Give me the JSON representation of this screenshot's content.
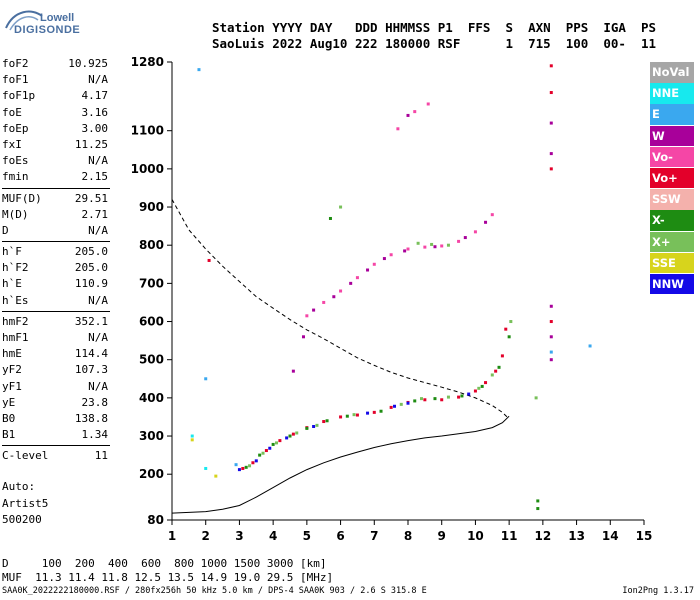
{
  "logo": {
    "line1": "Lowell",
    "line2": "DIGISONDE"
  },
  "header": {
    "line1": "Station YYYY DAY   DDD HHMMSS P1  FFS  S  AXN  PPS  IGA  PS",
    "line2": "SaoLuis 2022 Aug10 222 180000 RSF      1  715  100  00-  11"
  },
  "params": [
    {
      "group": [
        {
          "k": "foF2",
          "v": "10.925"
        },
        {
          "k": "foF1",
          "v": "N/A"
        },
        {
          "k": "foF1p",
          "v": "4.17"
        },
        {
          "k": "foE",
          "v": "3.16"
        },
        {
          "k": "foEp",
          "v": "3.00"
        },
        {
          "k": "fxI",
          "v": "11.25"
        },
        {
          "k": "foEs",
          "v": "N/A"
        },
        {
          "k": "fmin",
          "v": "2.15"
        }
      ]
    },
    {
      "group": [
        {
          "k": "MUF(D)",
          "v": "29.51"
        },
        {
          "k": "M(D)",
          "v": "2.71"
        },
        {
          "k": "D",
          "v": "N/A"
        }
      ]
    },
    {
      "group": [
        {
          "k": "h`F",
          "v": "205.0"
        },
        {
          "k": "h`F2",
          "v": "205.0"
        },
        {
          "k": "h`E",
          "v": "110.9"
        },
        {
          "k": "h`Es",
          "v": "N/A"
        }
      ]
    },
    {
      "group": [
        {
          "k": "hmF2",
          "v": "352.1"
        },
        {
          "k": "hmF1",
          "v": "N/A"
        },
        {
          "k": "hmE",
          "v": "114.4"
        },
        {
          "k": "yF2",
          "v": "107.3"
        },
        {
          "k": "yF1",
          "v": "N/A"
        },
        {
          "k": "yE",
          "v": "23.8"
        },
        {
          "k": "B0",
          "v": "138.8"
        },
        {
          "k": "B1",
          "v": "1.34"
        }
      ]
    },
    {
      "group": [
        {
          "k": "C-level",
          "v": "11"
        }
      ]
    }
  ],
  "auto": {
    "l1": "Auto:",
    "l2": "Artist5",
    "l3": "500200"
  },
  "legend": [
    {
      "label": "NoVal",
      "color": "#a6a6a6"
    },
    {
      "label": "NNE",
      "color": "#17e9ee"
    },
    {
      "label": "E",
      "color": "#3aa8ef"
    },
    {
      "label": "W",
      "color": "#a8009a"
    },
    {
      "label": "Vo-",
      "color": "#f546a6"
    },
    {
      "label": "Vo+",
      "color": "#e3002a"
    },
    {
      "label": "SSW",
      "color": "#f4b1ac"
    },
    {
      "label": "X-",
      "color": "#1e8c12"
    },
    {
      "label": "X+",
      "color": "#78c05a"
    },
    {
      "label": "SSE",
      "color": "#d7d41c"
    },
    {
      "label": "NNW",
      "color": "#1409e7"
    }
  ],
  "bottom": {
    "d_row": "D     100  200  400  600  800 1000 1500 3000 [km]",
    "muf_row": "MUF  11.3 11.4 11.8 12.5 13.5 14.9 19.0 29.5 [MHz]"
  },
  "footer": {
    "left": "SAA0K_2022222180000.RSF / 280fx256h 50 kHz 5.0 km / DPS-4 SAA0K 903 / 2.6 S 315.8 E",
    "right": "Ion2Png 1.3.17"
  },
  "chart_data": {
    "type": "scatter",
    "xlim": [
      1,
      15
    ],
    "ylim": [
      80,
      1280
    ],
    "x_ticks": [
      1,
      2,
      3,
      4,
      5,
      6,
      7,
      8,
      9,
      10,
      11,
      12,
      13,
      14,
      15
    ],
    "y_ticks": [
      80,
      200,
      300,
      400,
      500,
      600,
      700,
      800,
      900,
      1000,
      1100,
      1280
    ],
    "grid": false,
    "series": [
      {
        "color": "#e3002a",
        "points": [
          [
            3.1,
            215
          ],
          [
            3.4,
            230
          ],
          [
            3.8,
            262
          ],
          [
            4.2,
            288
          ],
          [
            4.6,
            305
          ],
          [
            5.0,
            322
          ],
          [
            5.5,
            338
          ],
          [
            6.0,
            350
          ],
          [
            6.5,
            355
          ],
          [
            7.0,
            362
          ],
          [
            7.5,
            375
          ],
          [
            8.0,
            388
          ],
          [
            8.5,
            395
          ],
          [
            9.0,
            395
          ],
          [
            9.5,
            402
          ],
          [
            10.0,
            418
          ],
          [
            10.3,
            440
          ],
          [
            10.6,
            470
          ],
          [
            10.8,
            510
          ],
          [
            10.9,
            580
          ]
        ]
      },
      {
        "color": "#1e8c12",
        "points": [
          [
            3.2,
            218
          ],
          [
            3.6,
            250
          ],
          [
            4.0,
            278
          ],
          [
            4.5,
            300
          ],
          [
            5.0,
            320
          ],
          [
            5.6,
            340
          ],
          [
            6.2,
            352
          ],
          [
            7.2,
            365
          ],
          [
            8.2,
            392
          ],
          [
            8.8,
            398
          ],
          [
            9.6,
            405
          ],
          [
            10.2,
            430
          ],
          [
            10.7,
            480
          ],
          [
            11.0,
            560
          ]
        ]
      },
      {
        "color": "#78c05a",
        "points": [
          [
            3.3,
            222
          ],
          [
            3.7,
            255
          ],
          [
            4.1,
            282
          ],
          [
            4.7,
            308
          ],
          [
            5.3,
            328
          ],
          [
            6.4,
            356
          ],
          [
            7.8,
            383
          ],
          [
            8.4,
            398
          ],
          [
            9.2,
            402
          ],
          [
            10.1,
            425
          ],
          [
            10.5,
            460
          ],
          [
            11.05,
            600
          ]
        ]
      },
      {
        "color": "#1409e7",
        "points": [
          [
            3.0,
            212
          ],
          [
            3.5,
            235
          ],
          [
            3.9,
            268
          ],
          [
            4.4,
            295
          ],
          [
            5.2,
            325
          ],
          [
            6.8,
            360
          ],
          [
            7.6,
            378
          ],
          [
            8.0,
            386
          ],
          [
            9.8,
            410
          ]
        ]
      },
      {
        "color": "#f546a6",
        "points": [
          [
            5.0,
            615
          ],
          [
            5.5,
            650
          ],
          [
            6.0,
            680
          ],
          [
            6.5,
            715
          ],
          [
            7.0,
            750
          ],
          [
            7.5,
            775
          ],
          [
            8.0,
            790
          ],
          [
            8.5,
            795
          ],
          [
            9.0,
            798
          ],
          [
            9.5,
            810
          ],
          [
            10.0,
            835
          ],
          [
            10.5,
            880
          ],
          [
            7.7,
            1105
          ],
          [
            8.2,
            1150
          ],
          [
            8.6,
            1170
          ]
        ]
      },
      {
        "color": "#a8009a",
        "points": [
          [
            5.2,
            630
          ],
          [
            5.8,
            665
          ],
          [
            6.3,
            700
          ],
          [
            6.8,
            735
          ],
          [
            7.3,
            765
          ],
          [
            7.9,
            785
          ],
          [
            8.8,
            796
          ],
          [
            9.7,
            820
          ],
          [
            10.3,
            860
          ],
          [
            4.6,
            470
          ],
          [
            4.9,
            560
          ],
          [
            8.0,
            1140
          ],
          [
            12.25,
            1120
          ],
          [
            12.25,
            1040
          ],
          [
            12.25,
            640
          ],
          [
            12.25,
            560
          ],
          [
            12.25,
            500
          ]
        ]
      },
      {
        "color": "#e3002a",
        "points": [
          [
            12.25,
            1000
          ],
          [
            12.25,
            1200
          ],
          [
            12.25,
            1270
          ],
          [
            12.25,
            600
          ],
          [
            2.1,
            760
          ]
        ]
      },
      {
        "color": "#3aa8ef",
        "points": [
          [
            1.8,
            1260
          ],
          [
            2.0,
            450
          ],
          [
            2.9,
            225
          ],
          [
            13.4,
            536
          ],
          [
            12.25,
            520
          ]
        ]
      },
      {
        "color": "#17e9ee",
        "points": [
          [
            1.6,
            300
          ],
          [
            2.0,
            215
          ]
        ]
      },
      {
        "color": "#78c05a",
        "points": [
          [
            8.3,
            805
          ],
          [
            8.7,
            802
          ],
          [
            9.2,
            800
          ],
          [
            6.0,
            900
          ],
          [
            11.8,
            400
          ]
        ]
      },
      {
        "color": "#1e8c12",
        "points": [
          [
            11.85,
            130
          ],
          [
            11.85,
            110
          ],
          [
            5.7,
            870
          ]
        ]
      },
      {
        "color": "#d7d41c",
        "points": [
          [
            1.6,
            290
          ],
          [
            2.3,
            195
          ]
        ]
      }
    ],
    "curves": [
      {
        "style": "dashed",
        "points": [
          [
            1.0,
            920
          ],
          [
            1.5,
            840
          ],
          [
            2.0,
            790
          ],
          [
            2.5,
            745
          ],
          [
            3.0,
            705
          ],
          [
            3.5,
            665
          ],
          [
            4.0,
            635
          ],
          [
            4.5,
            605
          ],
          [
            5.0,
            578
          ],
          [
            5.5,
            555
          ],
          [
            6.0,
            530
          ],
          [
            6.5,
            505
          ],
          [
            7.0,
            485
          ],
          [
            7.5,
            467
          ],
          [
            8.0,
            452
          ],
          [
            8.5,
            440
          ],
          [
            9.0,
            428
          ],
          [
            9.5,
            415
          ],
          [
            10.0,
            400
          ],
          [
            10.5,
            380
          ],
          [
            10.8,
            362
          ],
          [
            11.0,
            345
          ]
        ]
      },
      {
        "style": "solid",
        "points": [
          [
            1.0,
            98
          ],
          [
            2.0,
            102
          ],
          [
            2.5,
            108
          ],
          [
            3.0,
            118
          ],
          [
            3.5,
            140
          ],
          [
            4.0,
            165
          ],
          [
            4.5,
            190
          ],
          [
            5.0,
            212
          ],
          [
            5.5,
            230
          ],
          [
            6.0,
            245
          ],
          [
            6.5,
            258
          ],
          [
            7.0,
            270
          ],
          [
            7.5,
            280
          ],
          [
            8.0,
            288
          ],
          [
            8.5,
            295
          ],
          [
            9.0,
            300
          ],
          [
            9.5,
            306
          ],
          [
            10.0,
            312
          ],
          [
            10.5,
            322
          ],
          [
            10.8,
            335
          ],
          [
            11.0,
            352
          ]
        ]
      }
    ]
  }
}
